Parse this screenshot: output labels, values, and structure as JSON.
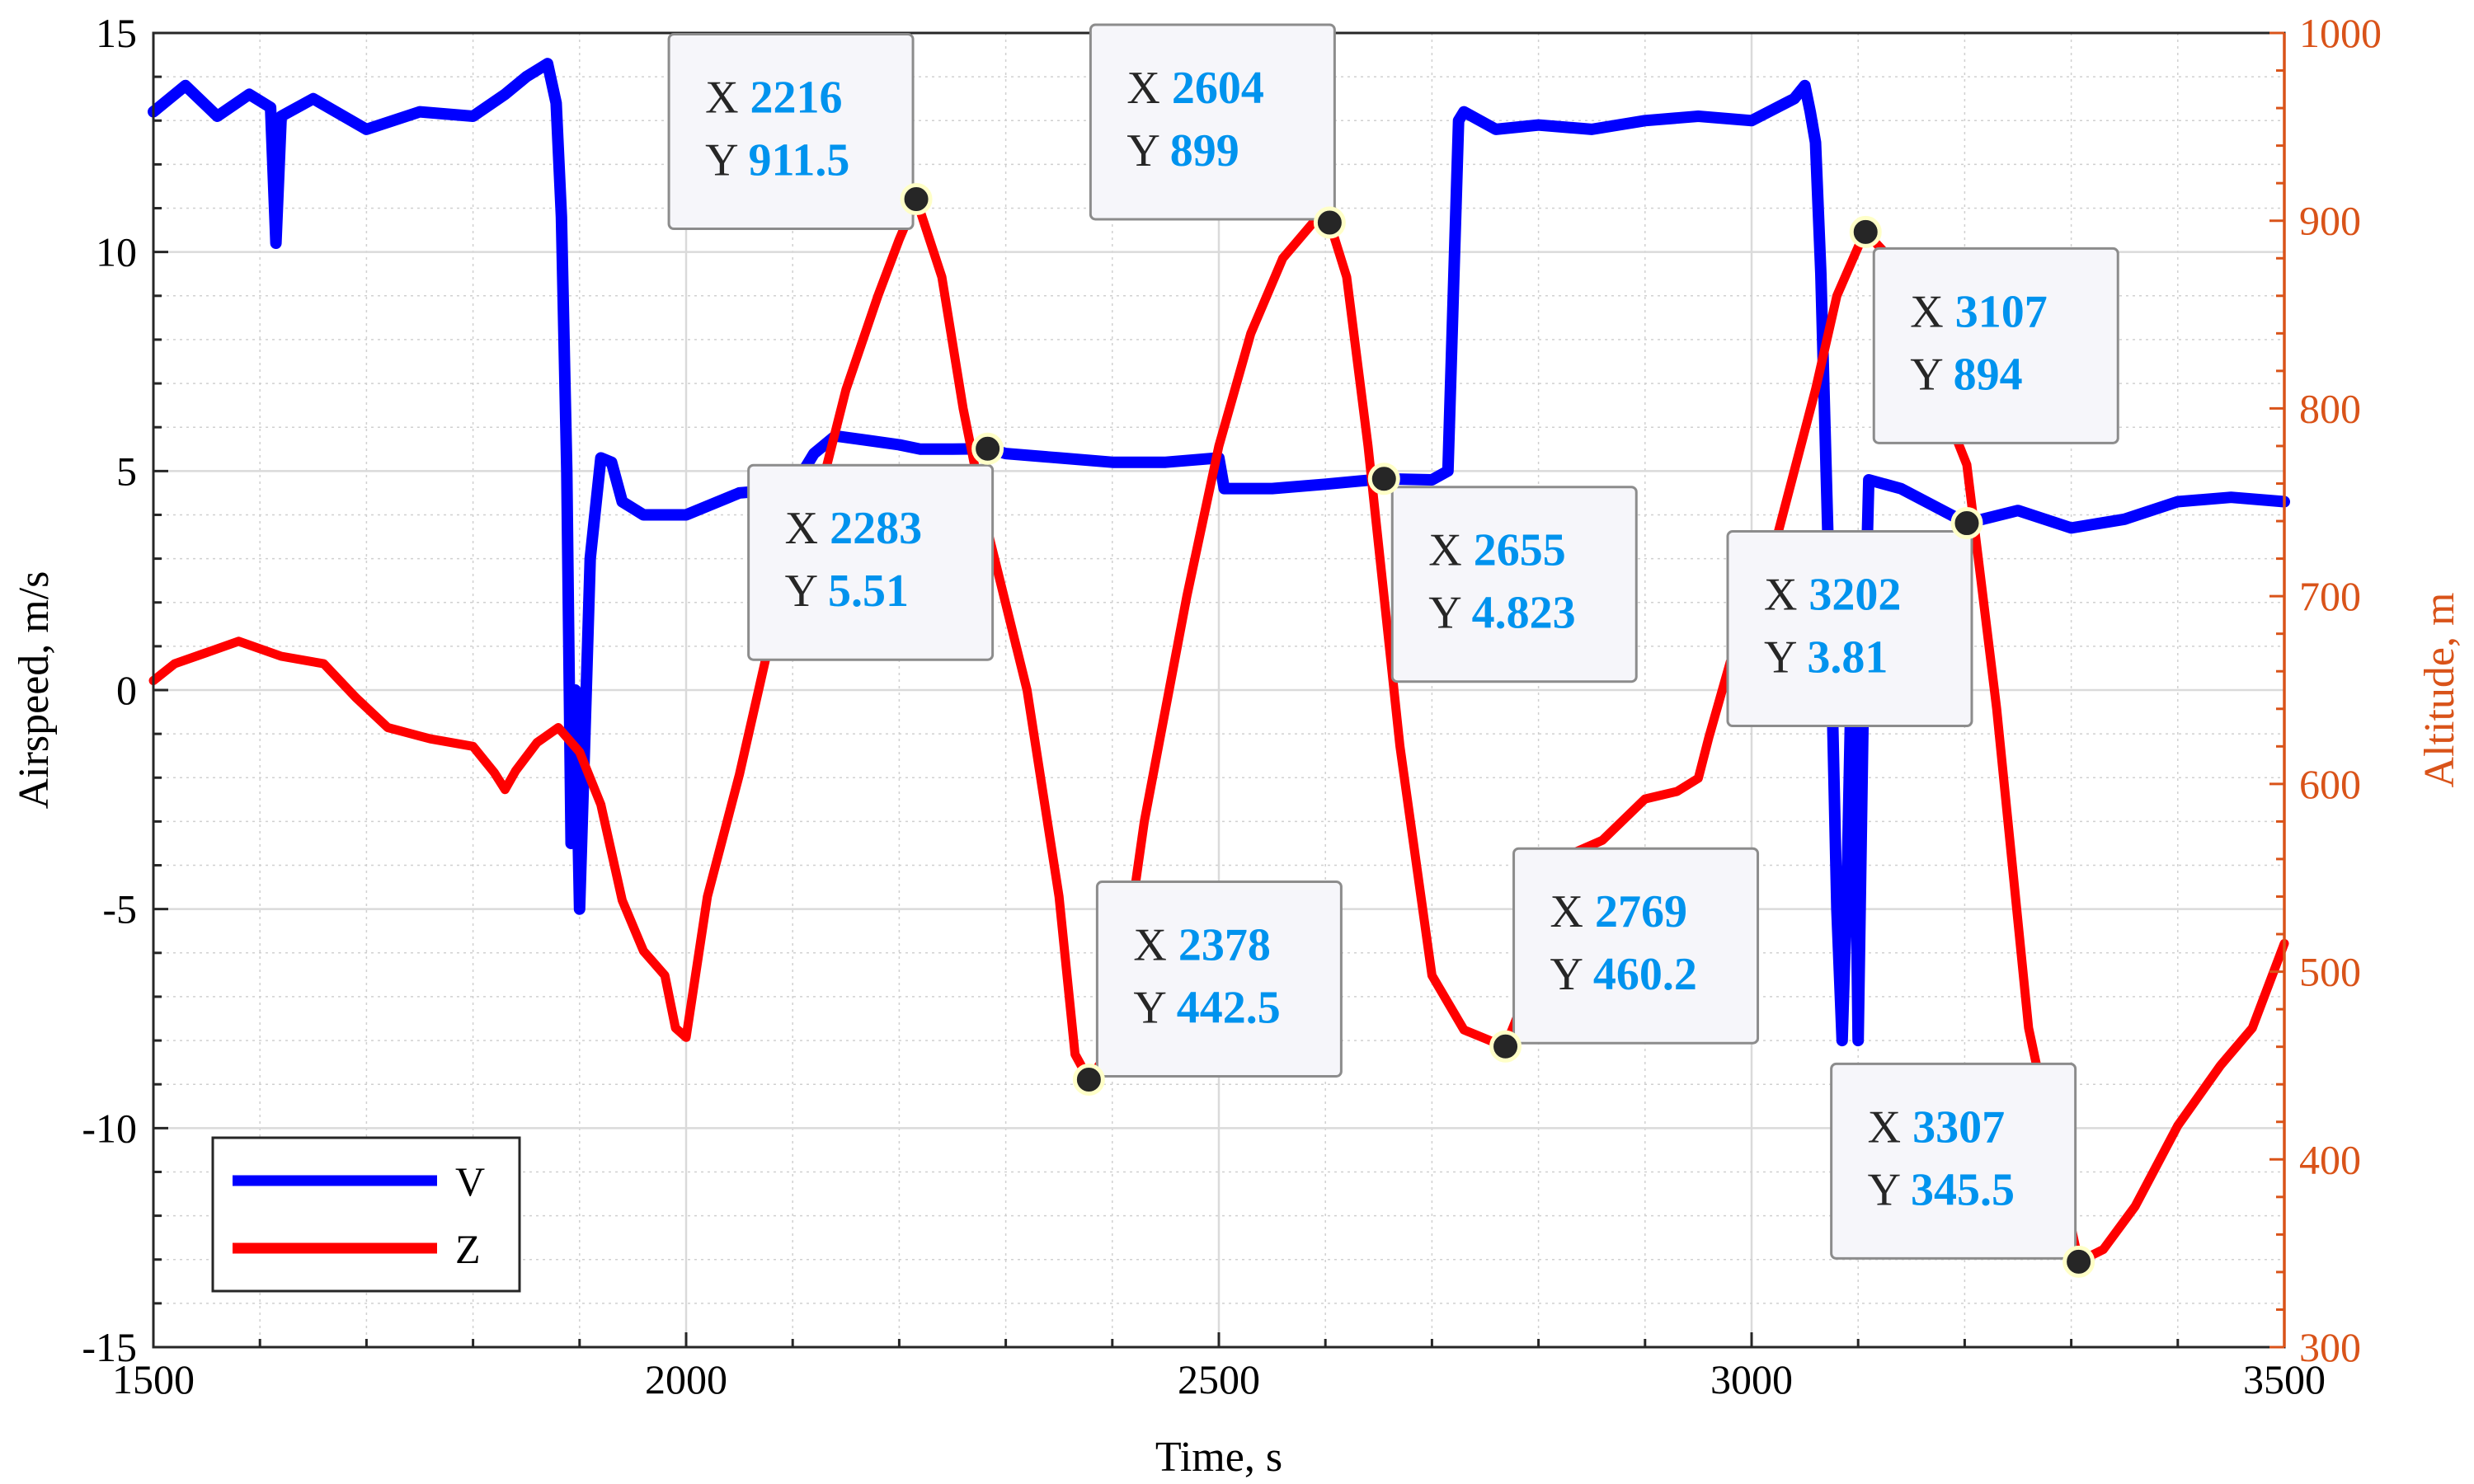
{
  "chart_data": {
    "type": "line",
    "xlabel": "Time, s",
    "ylabel_left": "Airspeed, m/s",
    "ylabel_right": "Altitude, m",
    "xlim": [
      1500,
      3500
    ],
    "ylim_left": [
      -15,
      15
    ],
    "ylim_right": [
      300,
      1000
    ],
    "x_ticks": [
      "1500",
      "2000",
      "2500",
      "3000",
      "3500"
    ],
    "y_left_ticks": [
      "15",
      "10",
      "5",
      "0",
      "-5",
      "-10",
      "-15"
    ],
    "y_right_ticks": [
      "1000",
      "900",
      "800",
      "700",
      "600",
      "500",
      "400",
      "300"
    ],
    "grid": true,
    "minor_grid": true,
    "legend_placement": "bottom-left",
    "colors": {
      "V": "#0000ff",
      "Z": "#ff0000",
      "right_axis": "#d95319",
      "tip_value": "#0093ee"
    },
    "series": [
      {
        "name": "V",
        "axis": "left",
        "x": [
          1500,
          1530,
          1560,
          1590,
          1610,
          1615,
          1620,
          1650,
          1700,
          1750,
          1800,
          1830,
          1850,
          1870,
          1878,
          1883,
          1888,
          1892,
          1896,
          1900,
          1905,
          1910,
          1920,
          1930,
          1940,
          1960,
          2000,
          2050,
          2100,
          2120,
          2140,
          2170,
          2200,
          2220,
          2250,
          2283,
          2300,
          2350,
          2400,
          2450,
          2500,
          2505,
          2550,
          2600,
          2655,
          2700,
          2715,
          2725,
          2730,
          2760,
          2800,
          2850,
          2900,
          2950,
          3000,
          3040,
          3050,
          3055,
          3060,
          3065,
          3070,
          3075,
          3080,
          3085,
          3090,
          3095,
          3100,
          3105,
          3110,
          3140,
          3202,
          3250,
          3300,
          3350,
          3400,
          3450,
          3500
        ],
        "y": [
          13.2,
          13.8,
          13.1,
          13.6,
          13.3,
          10.2,
          13.1,
          13.5,
          12.8,
          13.2,
          13.1,
          13.6,
          14.0,
          14.3,
          13.4,
          10.8,
          5.0,
          -3.5,
          0.0,
          -5.0,
          -1.0,
          3.0,
          5.3,
          5.2,
          4.3,
          4.0,
          4.0,
          4.5,
          4.6,
          5.4,
          5.8,
          5.7,
          5.6,
          5.5,
          5.5,
          5.51,
          5.4,
          5.3,
          5.2,
          5.2,
          5.3,
          4.6,
          4.6,
          4.7,
          4.823,
          4.8,
          5.0,
          13.0,
          13.2,
          12.8,
          12.9,
          12.8,
          13.0,
          13.1,
          13.0,
          13.5,
          13.8,
          13.2,
          12.5,
          9.5,
          5.0,
          0.5,
          -5.0,
          -8.0,
          -4.0,
          2.0,
          -8.0,
          0.0,
          4.8,
          4.6,
          3.81,
          4.1,
          3.7,
          3.9,
          4.3,
          4.4,
          4.3
        ]
      },
      {
        "name": "Z",
        "axis": "right",
        "x": [
          1500,
          1520,
          1550,
          1580,
          1620,
          1660,
          1690,
          1720,
          1760,
          1800,
          1820,
          1830,
          1840,
          1860,
          1880,
          1900,
          1920,
          1940,
          1960,
          1980,
          1990,
          2000,
          2020,
          2050,
          2080,
          2110,
          2150,
          2180,
          2200,
          2216,
          2240,
          2260,
          2283,
          2320,
          2350,
          2365,
          2378,
          2400,
          2430,
          2470,
          2500,
          2530,
          2560,
          2590,
          2604,
          2620,
          2640,
          2670,
          2700,
          2730,
          2760,
          2769,
          2790,
          2820,
          2860,
          2900,
          2930,
          2950,
          2960,
          2980,
          3000,
          3030,
          3060,
          3080,
          3100,
          3107,
          3130,
          3160,
          3202,
          3230,
          3260,
          3290,
          3307,
          3330,
          3360,
          3400,
          3440,
          3470,
          3500
        ],
        "y": [
          655,
          664,
          670,
          676,
          668,
          664,
          646,
          630,
          624,
          620,
          606,
          597,
          607,
          622,
          630,
          617,
          589,
          538,
          511,
          498,
          470,
          465,
          540,
          605,
          680,
          720,
          810,
          860,
          890,
          911.5,
          870,
          800,
          735,
          650,
          540,
          456,
          442.5,
          460,
          580,
          700,
          780,
          840,
          880,
          900,
          899,
          870,
          780,
          620,
          498,
          469,
          462,
          460.2,
          490,
          560,
          570,
          592,
          596,
          603,
          625,
          665,
          680,
          745,
          810,
          860,
          886,
          894,
          880,
          830,
          770,
          640,
          470,
          390,
          345.5,
          352,
          375,
          418,
          450,
          470,
          515
        ]
      }
    ],
    "datatips": [
      {
        "series": "Z",
        "x_label": "X",
        "x": "2216",
        "y_label": "Y",
        "y": "911.5"
      },
      {
        "series": "Z",
        "x_label": "X",
        "x": "2604",
        "y_label": "Y",
        "y": "899"
      },
      {
        "series": "Z",
        "x_label": "X",
        "x": "3107",
        "y_label": "Y",
        "y": "894"
      },
      {
        "series": "V",
        "x_label": "X",
        "x": "2283",
        "y_label": "Y",
        "y": "5.51"
      },
      {
        "series": "V",
        "x_label": "X",
        "x": "2655",
        "y_label": "Y",
        "y": "4.823"
      },
      {
        "series": "V",
        "x_label": "X",
        "x": "3202",
        "y_label": "Y",
        "y": "3.81"
      },
      {
        "series": "Z",
        "x_label": "X",
        "x": "2378",
        "y_label": "Y",
        "y": "442.5"
      },
      {
        "series": "Z",
        "x_label": "X",
        "x": "2769",
        "y_label": "Y",
        "y": "460.2"
      },
      {
        "series": "Z",
        "x_label": "X",
        "x": "3307",
        "y_label": "Y",
        "y": "345.5"
      }
    ],
    "legend": [
      {
        "name": "V",
        "color": "#0000ff"
      },
      {
        "name": "Z",
        "color": "#ff0000"
      }
    ]
  }
}
